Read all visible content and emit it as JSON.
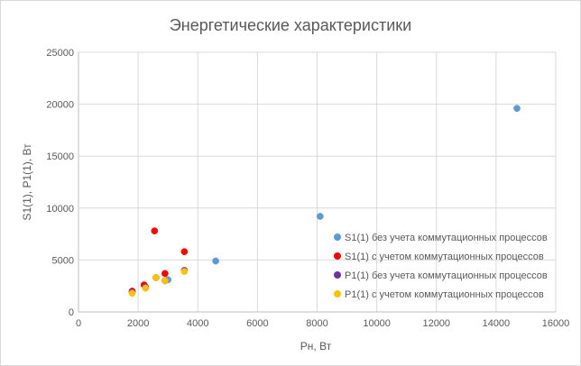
{
  "chart_data": {
    "type": "scatter",
    "title": "Энергетические характеристики",
    "xlabel": "Рн, Вт",
    "ylabel": "S1(1), P1(1), Вт",
    "xlim": [
      0,
      16000
    ],
    "ylim": [
      0,
      25000
    ],
    "x_ticks": [
      "0",
      "2000",
      "4000",
      "6000",
      "8000",
      "10000",
      "12000",
      "14000",
      "16000"
    ],
    "y_ticks": [
      "0",
      "5000",
      "10000",
      "15000",
      "20000",
      "25000"
    ],
    "grid": true,
    "legend_position": "right",
    "series": [
      {
        "name": "S1(1) без учета коммутационных процессов",
        "color": "#5b9bd5",
        "points": [
          [
            2250,
            2300
          ],
          [
            3000,
            3100
          ],
          [
            4600,
            4900
          ],
          [
            8100,
            9200
          ],
          [
            14700,
            19600
          ]
        ]
      },
      {
        "name": "S1(1) с учетом коммутационных процессов",
        "color": "#ff0000",
        "points": [
          [
            1800,
            2000
          ],
          [
            2200,
            2600
          ],
          [
            2550,
            7800
          ],
          [
            2900,
            3700
          ],
          [
            3550,
            5800
          ]
        ]
      },
      {
        "name": "P1(1) без учета коммутационных процессов",
        "color": "#7030a0",
        "points": [
          [
            1800,
            1900
          ],
          [
            2250,
            2400
          ],
          [
            2600,
            3300
          ],
          [
            2900,
            3000
          ],
          [
            3550,
            4000
          ]
        ]
      },
      {
        "name": "P1(1) с учетом коммутационных процессов",
        "color": "#ffc000",
        "points": [
          [
            1800,
            1800
          ],
          [
            2250,
            2300
          ],
          [
            2600,
            3300
          ],
          [
            2900,
            3000
          ],
          [
            3550,
            3900
          ]
        ]
      }
    ]
  }
}
